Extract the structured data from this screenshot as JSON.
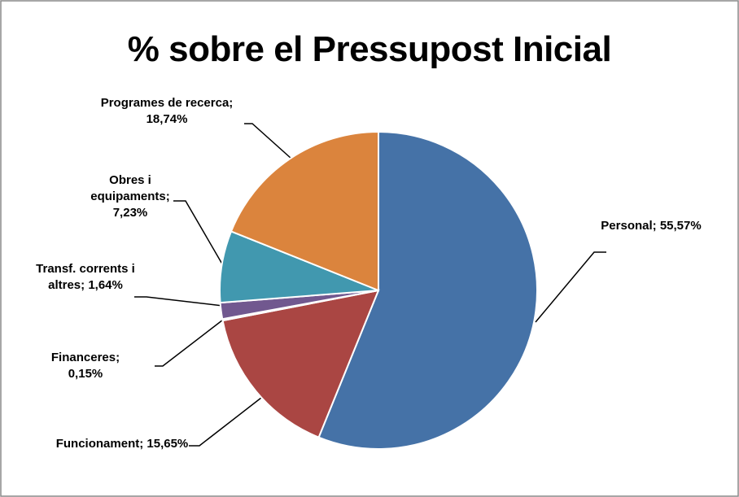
{
  "chart_data": {
    "type": "pie",
    "title": "% sobre el Pressupost Inicial",
    "categories": [
      "Personal;",
      "Funcionament;",
      "Financeres;",
      "Transf. corrents i altres;",
      "Obres i equipaments;",
      "Programes de recerca;"
    ],
    "values": [
      55.57,
      15.65,
      0.15,
      1.64,
      7.23,
      18.74
    ],
    "value_labels": [
      "55,57%",
      "15,65%",
      "0,15%",
      "1,64%",
      "7,23%",
      "18,74%"
    ],
    "colors": [
      "#4572a7",
      "#aa4643",
      "#89a54e",
      "#71588f",
      "#4198af",
      "#db843d"
    ]
  }
}
